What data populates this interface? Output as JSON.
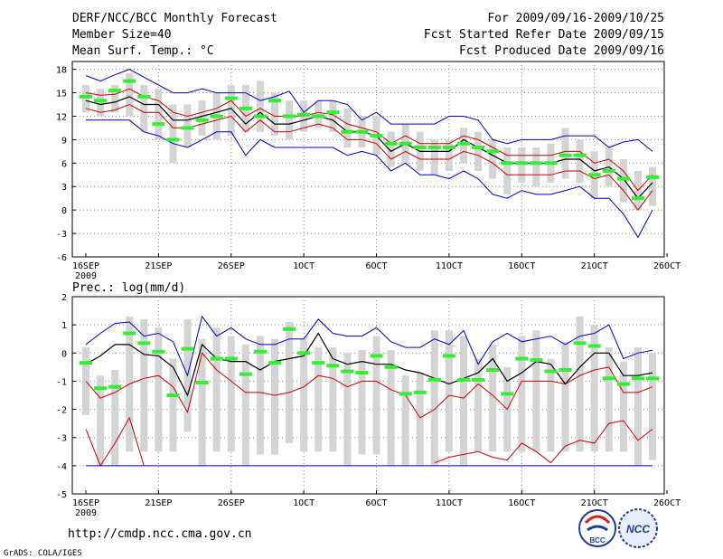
{
  "header": {
    "title": "DERF/NCC/BCC Monthly Forecast",
    "member_size": "Member Size=40",
    "variable": "Mean Surf. Temp.: °C",
    "period": "For 2009/09/16-2009/10/25",
    "started": "Fcst Started Refer Date 2009/09/15",
    "produced": "Fcst Produced Date 2009/09/16"
  },
  "footer": {
    "url": "http://cmdp.ncc.cma.gov.cn",
    "credit": "GrADS: COLA/IGES",
    "logo_bcc": "BCC",
    "logo_ncc": "NCC"
  },
  "colors": {
    "max": "#0000cc",
    "mean": "#000000",
    "band": "#cc0000",
    "median": "#33ee33",
    "box": "#d4d4d4"
  },
  "chart_data": [
    {
      "type": "line",
      "title": "Mean Surf. Temp.: °C",
      "x_ticks": [
        "16SEP",
        "21SEP",
        "26SEP",
        "1OCT",
        "6OCT",
        "11OCT",
        "16OCT",
        "21OCT",
        "26OCT"
      ],
      "x_year": "2009",
      "ylim": [
        -6,
        19
      ],
      "yticks": [
        -6,
        -3,
        0,
        3,
        6,
        9,
        12,
        15,
        18
      ],
      "series": [
        {
          "name": "max",
          "values": [
            17.2,
            16.5,
            17.3,
            18,
            17,
            16,
            15,
            15,
            15.5,
            15,
            15,
            15,
            14,
            14.5,
            15.2,
            12.5,
            14,
            14,
            13.5,
            11.5,
            12.5,
            11,
            11,
            11,
            11,
            12,
            12,
            11.5,
            9,
            8.5,
            9,
            9,
            9,
            9.5,
            9.5,
            9.5,
            8,
            8.7,
            9,
            7.5
          ]
        },
        {
          "name": "upper",
          "values": [
            15,
            14.7,
            14.8,
            15.5,
            14.5,
            14,
            12.5,
            12,
            12.5,
            13,
            14,
            12,
            13,
            12,
            12,
            12,
            12.5,
            12.2,
            11,
            10.5,
            10,
            8.5,
            9.5,
            8.5,
            8.5,
            8.5,
            9.5,
            9,
            8,
            7,
            7,
            7,
            7,
            7.5,
            7.5,
            6,
            6.5,
            5,
            2.5,
            4.5
          ]
        },
        {
          "name": "mean",
          "values": [
            14,
            13.5,
            13.8,
            14.5,
            13.5,
            13.5,
            11.5,
            11.5,
            12,
            12.5,
            13,
            11,
            12.5,
            11,
            11,
            11.5,
            12,
            11.5,
            10,
            10,
            9.5,
            7.5,
            8.5,
            7.5,
            7.5,
            7.5,
            9,
            8,
            7,
            6,
            6,
            6,
            6,
            6.5,
            6.5,
            5,
            5.5,
            4,
            1.5,
            3.5
          ]
        },
        {
          "name": "lower",
          "values": [
            13,
            12.5,
            12.8,
            13.5,
            12.5,
            12.5,
            10.5,
            10.5,
            11,
            11.5,
            12,
            10,
            11.5,
            10,
            10,
            10.5,
            11,
            10.5,
            9,
            9,
            8.5,
            6.5,
            7.5,
            6.5,
            6.5,
            6.5,
            7.5,
            7,
            6,
            4.5,
            4.5,
            4.5,
            4.5,
            5,
            5,
            4,
            4.5,
            2.5,
            0,
            2.5
          ]
        },
        {
          "name": "min",
          "values": [
            11.5,
            11.5,
            11.5,
            11.5,
            10,
            9.5,
            8.5,
            8,
            9,
            10,
            10,
            7,
            9,
            8,
            8,
            8,
            8,
            8,
            7,
            7.5,
            7,
            5,
            6,
            4.5,
            4.5,
            4,
            5,
            4,
            2,
            1.5,
            2.5,
            2,
            2,
            2.5,
            3,
            1.5,
            1.5,
            -0.5,
            -3.5,
            0
          ]
        },
        {
          "name": "median",
          "values": [
            14.5,
            14,
            15.3,
            16.5,
            14.5,
            11,
            9,
            10.5,
            11.5,
            12,
            14.3,
            13,
            12,
            14,
            12,
            12.2,
            12,
            12.5,
            10,
            10,
            9.5,
            8.5,
            8.5,
            8,
            8,
            8,
            8.5,
            8,
            7.5,
            6,
            6,
            6,
            6,
            7,
            7,
            4.5,
            5,
            4,
            1.5,
            4.2
          ]
        },
        {
          "name": "box_top",
          "values": [
            16,
            15.5,
            16,
            17.5,
            16,
            15.5,
            13.5,
            13.5,
            14,
            15,
            16,
            16,
            16.5,
            15,
            14,
            14,
            14,
            14,
            13,
            12,
            12,
            10,
            11,
            10,
            9,
            9,
            10.5,
            10,
            9,
            8,
            8,
            8,
            8.5,
            10.5,
            9,
            7.5,
            8,
            6.5,
            5,
            5.5
          ]
        },
        {
          "name": "box_bottom",
          "values": [
            12.5,
            12,
            12.5,
            12,
            10,
            9,
            6,
            8,
            9.5,
            9,
            9.5,
            10,
            10,
            9.5,
            9,
            10,
            10.5,
            10,
            8,
            8,
            7,
            5.5,
            6,
            5,
            4.5,
            5,
            6,
            5,
            4,
            2,
            3.5,
            3,
            3.5,
            4,
            3.5,
            1.5,
            3,
            1,
            0,
            0.5
          ]
        }
      ]
    },
    {
      "type": "line",
      "title": "Prec.: log(mm/d)",
      "x_ticks": [
        "16SEP",
        "21SEP",
        "26SEP",
        "1OCT",
        "6OCT",
        "11OCT",
        "16OCT",
        "21OCT",
        "26OCT"
      ],
      "x_year": "2009",
      "ylim": [
        -5,
        2
      ],
      "yticks": [
        -5,
        -4,
        -3,
        -2,
        -1,
        0,
        1,
        2
      ],
      "series": [
        {
          "name": "max",
          "values": [
            0.3,
            0.7,
            1.05,
            1.1,
            0.6,
            0.7,
            0.4,
            -0.8,
            1.3,
            0.6,
            0.9,
            0.5,
            0.3,
            0.3,
            0.5,
            0.5,
            1.2,
            0.7,
            0.6,
            0.6,
            0.9,
            0.4,
            0.2,
            0.2,
            0.5,
            0.3,
            0.8,
            -0.4,
            0.4,
            0.7,
            0.4,
            0.5,
            0.6,
            0.3,
            0.6,
            0.7,
            1.0,
            -0.2,
            0,
            0.1
          ]
        },
        {
          "name": "mean",
          "values": [
            -0.4,
            -0.1,
            0.3,
            0.3,
            -0.05,
            -0.1,
            -0.5,
            -1.5,
            0.3,
            -0.2,
            -0.3,
            -0.3,
            -0.6,
            -0.3,
            -0.2,
            -0.1,
            0.7,
            -0.2,
            -0.4,
            -0.3,
            -0.4,
            -0.4,
            -0.6,
            -0.7,
            -0.9,
            -1.1,
            -0.9,
            -0.7,
            -0.2,
            -1.0,
            -0.7,
            -0.3,
            -0.4,
            -1.1,
            -0.5,
            0,
            0,
            -0.8,
            -0.8,
            -0.7
          ]
        },
        {
          "name": "lower",
          "values": [
            -1,
            -1.6,
            -1.4,
            -1.1,
            -0.9,
            -0.8,
            -1.2,
            -2.1,
            0,
            -0.6,
            -1.0,
            -1.4,
            -1.4,
            -1.5,
            -1.4,
            -1.2,
            -0.8,
            -0.9,
            -1.2,
            -1.0,
            -1.0,
            -1.3,
            -1.5,
            -2.3,
            -2.0,
            -1.5,
            -1.6,
            -1.1,
            -1.5,
            -2.0,
            -1.0,
            -1.0,
            -1.0,
            -1.1,
            -0.8,
            -0.6,
            -0.5,
            -1.4,
            -1.4,
            -1.2
          ]
        },
        {
          "name": "min_curve",
          "values": [
            -2.7,
            -4,
            -3.2,
            -2.3,
            -4,
            null,
            null,
            null,
            null,
            null,
            null,
            null,
            null,
            null,
            null,
            null,
            null,
            null,
            null,
            null,
            null,
            null,
            null,
            null,
            -3.9,
            -3.7,
            -3.6,
            -3.5,
            -3.7,
            -3.8,
            -3.2,
            -3.5,
            -3.9,
            -3.3,
            -3.1,
            -3.2,
            -2.5,
            -2.4,
            -3.1,
            -2.7
          ]
        },
        {
          "name": "median",
          "values": [
            -0.35,
            -1.25,
            -1.2,
            0.7,
            0.35,
            0.05,
            -1.5,
            0.15,
            -1.05,
            -0.2,
            -0.2,
            -0.75,
            0.05,
            -0.35,
            0.85,
            0,
            -0.35,
            -0.45,
            -0.65,
            -0.7,
            -0.1,
            -0.5,
            -1.45,
            -1.4,
            -0.95,
            -0.1,
            -0.95,
            -0.95,
            -0.6,
            -1.45,
            -0.2,
            -0.25,
            -0.65,
            -0.6,
            0.35,
            0.25,
            -0.9,
            -1.1,
            -0.9,
            -0.9
          ]
        },
        {
          "name": "box_top",
          "values": [
            0.2,
            -0.8,
            -0.6,
            1.3,
            1.2,
            0.9,
            -0.2,
            1.2,
            0.5,
            0.9,
            0.6,
            0.3,
            0.6,
            0.5,
            1.1,
            0.5,
            0.2,
            0.2,
            0,
            0.1,
            0.6,
            0.1,
            -0.8,
            -0.7,
            0.8,
            0.8,
            0.6,
            -0.2,
            0.3,
            -0.5,
            0.6,
            0.8,
            -0.2,
            0.4,
            1.3,
            1.0,
            0.2,
            -0.3,
            0.2,
            0
          ]
        },
        {
          "name": "box_bottom",
          "values": [
            -2.2,
            -4,
            -4,
            -3.5,
            -3.5,
            -3.5,
            -3.5,
            -2.8,
            -4,
            -3.5,
            -3.5,
            -4,
            -3.6,
            -3.6,
            -3.2,
            -3.5,
            -3.5,
            -3.5,
            -4,
            -3.6,
            -3.6,
            -4,
            -4,
            -4,
            -4,
            -3.5,
            -4,
            -3.5,
            -3.5,
            -3.5,
            -3.5,
            -3.5,
            -3.5,
            -3.5,
            -3.5,
            -3.5,
            -3.5,
            -3.5,
            -4,
            -3.8
          ]
        }
      ]
    }
  ]
}
